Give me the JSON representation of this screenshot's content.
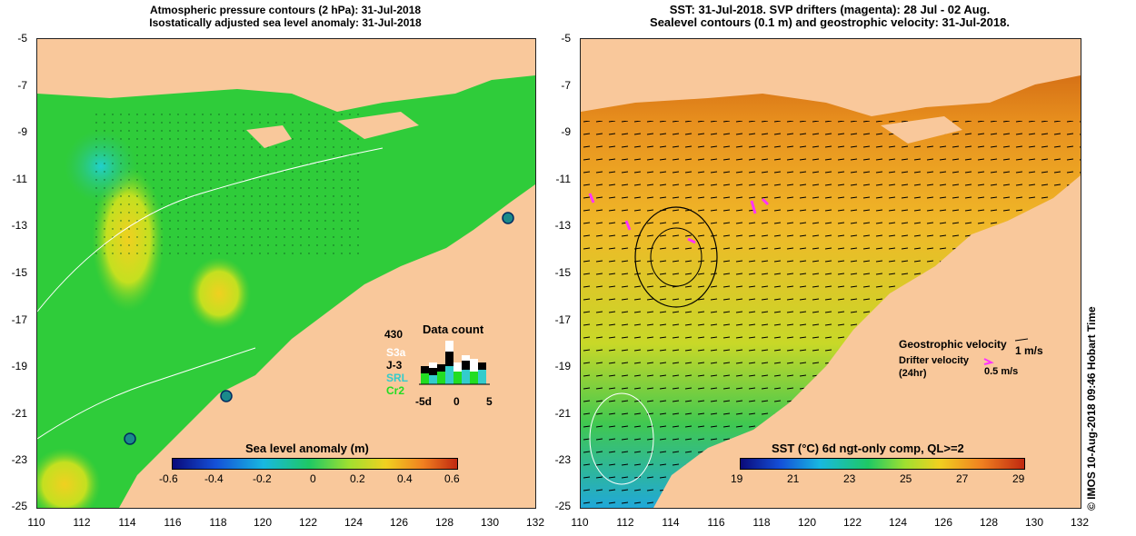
{
  "left_panel": {
    "title_line1": "Atmospheric pressure contours (2 hPa): 31-Jul-2018",
    "title_line2": "Isostatically adjusted sea level anomaly: 31-Jul-2018",
    "colorbar_title": "Sea level anomaly (m)",
    "colorbar_ticks": [
      "-0.6",
      "-0.4",
      "-0.2",
      "0",
      "0.2",
      "0.4",
      "0.6"
    ],
    "data_count": {
      "title": "Data count",
      "max_label": "430",
      "missions": [
        {
          "name": "S3a",
          "color": "#ffffff"
        },
        {
          "name": "J-3",
          "color": "#000000"
        },
        {
          "name": "SRL",
          "color": "#33cccc"
        },
        {
          "name": "Cr2",
          "color": "#22dd22"
        }
      ],
      "axis_ticks": [
        "-5d",
        "0",
        "5"
      ]
    }
  },
  "right_panel": {
    "title_line1": "SST: 31-Jul-2018. SVP drifters (magenta): 28 Jul - 02 Aug.",
    "title_line2": "Sealevel contours (0.1 m) and geostrophic velocity: 31-Jul-2018.",
    "colorbar_title": "SST (°C) 6d ngt-only comp, QL>=2",
    "colorbar_ticks": [
      "19",
      "21",
      "23",
      "25",
      "27",
      "29"
    ],
    "geostrophic_label": "Geostrophic velocity",
    "geostrophic_scale": "1 m/s",
    "drifter_label_line1": "Drifter velocity",
    "drifter_label_line2": "(24hr)",
    "drifter_scale": "0.5 m/s",
    "side_credit": "© IMOS 10-Aug-2018 09:46 Hobart Time"
  },
  "axes": {
    "y_ticks": [
      "-5",
      "-7",
      "-9",
      "-11",
      "-13",
      "-15",
      "-17",
      "-19",
      "-21",
      "-23",
      "-25"
    ],
    "x_ticks": [
      "110",
      "112",
      "114",
      "116",
      "118",
      "120",
      "122",
      "124",
      "126",
      "128",
      "130",
      "132"
    ]
  },
  "colors": {
    "land": "#f9c89b",
    "ssl_green": "#2fcc3a",
    "sst_orange": "#ef9a24"
  }
}
